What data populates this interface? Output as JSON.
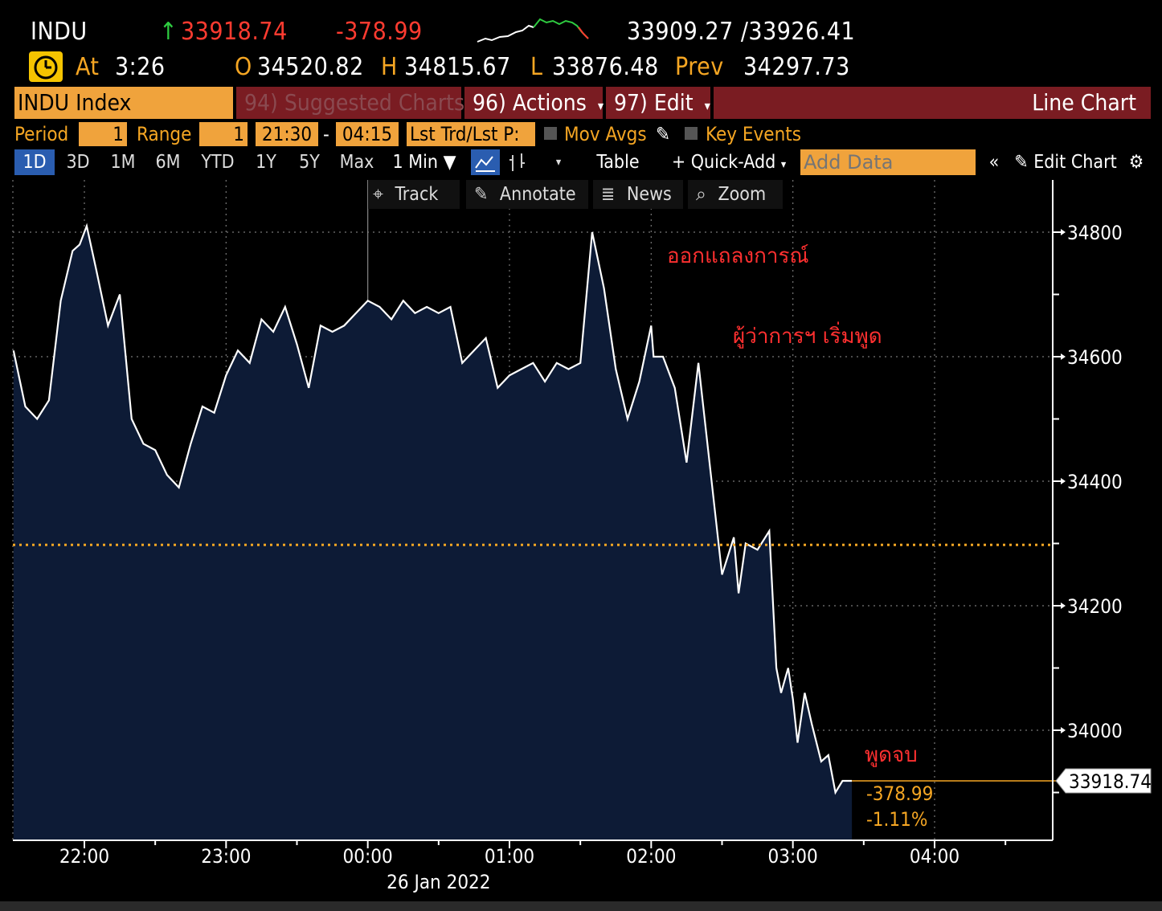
{
  "quote": {
    "ticker": "INDU",
    "arrow": "↑",
    "last": "33918.74",
    "change": "-378.99",
    "bid_ask": "33909.27 /33926.41",
    "at_label": "At",
    "time": "3:26",
    "open_label": "O",
    "open": "34520.82",
    "high_label": "H",
    "high": "34815.67",
    "low_label": "L",
    "low": "33876.48",
    "prev_label": "Prev",
    "prev": "34297.73"
  },
  "menu": {
    "security": "INDU Index",
    "suggested": "94) Suggested Charts",
    "actions": "96) Actions",
    "edit": "97) Edit",
    "chart_type": "Line Chart"
  },
  "params": {
    "period_label": "Period",
    "period_value": "1",
    "range_label": "Range",
    "range_value": "1",
    "start_time": "21:30",
    "dash": "-",
    "end_time": "04:15",
    "price_field": "Lst Trd/Lst P:",
    "mov_avgs": "Mov Avgs",
    "key_events": "Key Events"
  },
  "toolbar": {
    "ranges": [
      "1D",
      "3D",
      "1M",
      "6M",
      "YTD",
      "1Y",
      "5Y",
      "Max"
    ],
    "interval": "1 Min",
    "table": "Table",
    "quick_add": "Quick-Add",
    "add_data_placeholder": "Add Data",
    "edit_chart": "Edit Chart"
  },
  "tools": {
    "track": "Track",
    "annotate": "Annotate",
    "news": "News",
    "zoom": "Zoom"
  },
  "colors": {
    "accent_orange": "#f0a33c",
    "menu_red": "#7a1c22",
    "area_fill": "#0d1b36",
    "line": "#ffffff",
    "prev_close_line": "#f5a623",
    "annotation": "#ff3030"
  },
  "chart_data": {
    "type": "area",
    "date_label": "26 Jan 2022",
    "x_ticks": [
      "22:00",
      "23:00",
      "00:00",
      "01:00",
      "02:00",
      "03:00",
      "04:00"
    ],
    "y_ticks": [
      34000,
      34200,
      34400,
      34600,
      34800
    ],
    "ylim": [
      33820,
      34890
    ],
    "prev_close": 34297.73,
    "last_label": "33918.74",
    "change_label": "-378.99",
    "change_pct_label": "-1.11%",
    "annotations": [
      {
        "text": "ออกแถลงการณ์",
        "time": "02:01"
      },
      {
        "text": "ผู้ว่าการฯ เริ่มพูด",
        "time": "02:37"
      },
      {
        "text": "พูดจบ",
        "time": "03:25"
      }
    ],
    "series": [
      {
        "x": [
          "21:30",
          "21:35",
          "21:40",
          "21:45",
          "21:50",
          "21:55",
          "21:58",
          "22:01",
          "22:05",
          "22:10",
          "22:15",
          "22:20",
          "22:25",
          "22:30",
          "22:35",
          "22:40",
          "22:45",
          "22:50",
          "22:55",
          "23:00",
          "23:05",
          "23:10",
          "23:15",
          "23:20",
          "23:25",
          "23:30",
          "23:35",
          "23:40",
          "23:45",
          "23:50",
          "23:55",
          "00:00",
          "00:05",
          "00:10",
          "00:15",
          "00:20",
          "00:25",
          "00:30",
          "00:35",
          "00:40",
          "00:45",
          "00:50",
          "00:55",
          "01:00",
          "01:05",
          "01:10",
          "01:15",
          "01:20",
          "01:25",
          "01:30",
          "01:35",
          "01:40",
          "01:45",
          "01:50",
          "01:55",
          "02:00",
          "02:01",
          "02:05",
          "02:10",
          "02:15",
          "02:20",
          "02:25",
          "02:30",
          "02:35",
          "02:37",
          "02:40",
          "02:45",
          "02:50",
          "02:53",
          "02:55",
          "02:58",
          "03:00",
          "03:02",
          "03:05",
          "03:08",
          "03:12",
          "03:15",
          "03:18",
          "03:21",
          "03:25"
        ],
        "values": [
          34610,
          34520,
          34500,
          34530,
          34690,
          34770,
          34780,
          34810,
          34740,
          34650,
          34700,
          34500,
          34460,
          34450,
          34410,
          34390,
          34460,
          34520,
          34510,
          34570,
          34610,
          34590,
          34660,
          34640,
          34680,
          34620,
          34550,
          34650,
          34640,
          34650,
          34670,
          34690,
          34680,
          34660,
          34690,
          34670,
          34680,
          34670,
          34680,
          34590,
          34610,
          34630,
          34550,
          34570,
          34580,
          34590,
          34560,
          34590,
          34580,
          34590,
          34800,
          34710,
          34580,
          34500,
          34560,
          34650,
          34600,
          34600,
          34550,
          34430,
          34590,
          34420,
          34250,
          34310,
          34220,
          34300,
          34290,
          34320,
          34100,
          34060,
          34100,
          34050,
          33980,
          34060,
          34010,
          33950,
          33960,
          33900,
          33918.74,
          33918.74
        ]
      }
    ]
  }
}
